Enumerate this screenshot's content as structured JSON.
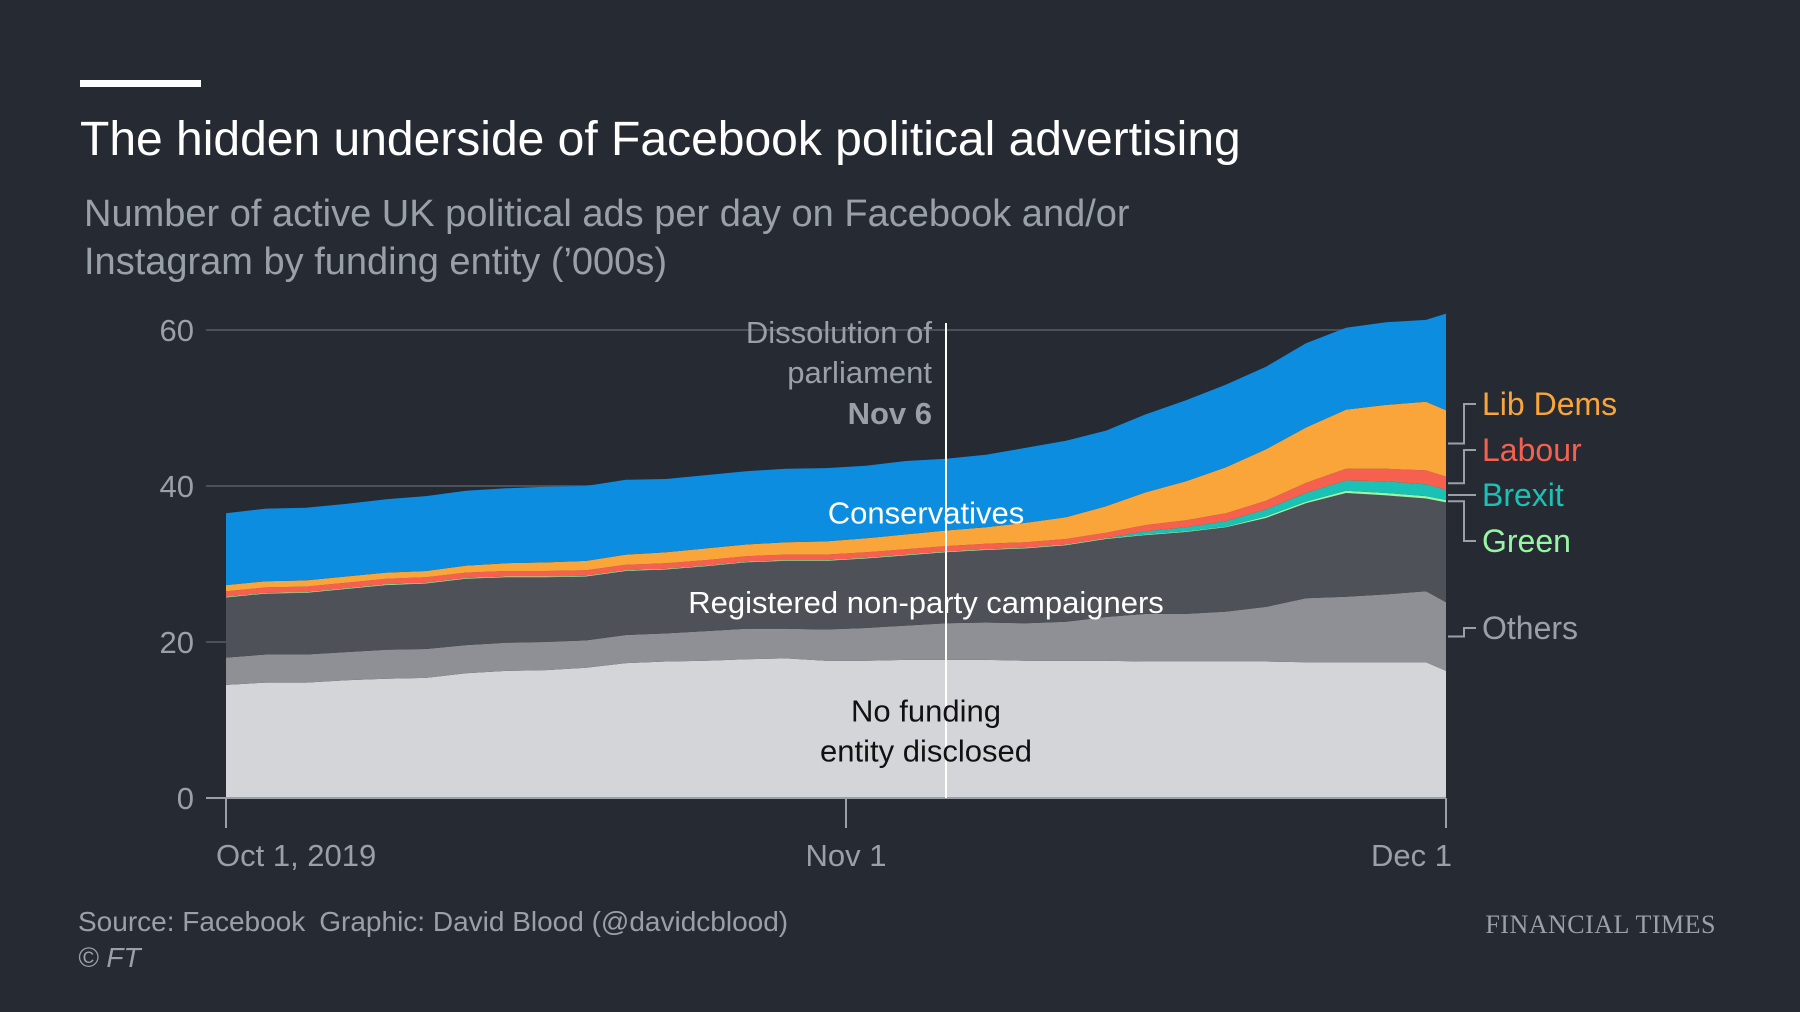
{
  "header": {
    "title": "The hidden underside of Facebook political advertising",
    "subtitle": "Number of active UK political ads per day on Facebook and/or Instagram by funding entity (’000s)"
  },
  "footer": {
    "source": "Source: Facebook",
    "graphic": "Graphic: David Blood (@davidcblood)",
    "copyright": "© FT",
    "brand": "FINANCIAL TIMES"
  },
  "colors": {
    "background": "#262a33",
    "gridline": "#4b5058",
    "axis_text": "#9aa0a8"
  },
  "chart_data": {
    "type": "area",
    "stacked": true,
    "x_type": "date",
    "ylim": [
      0,
      60
    ],
    "y_ticks": [
      0,
      20,
      40,
      60
    ],
    "x_ticks": [
      {
        "x": "2019-10-01",
        "label": "Oct 1, 2019"
      },
      {
        "x": "2019-11-01",
        "label": "Nov 1"
      },
      {
        "x": "2019-12-01",
        "label": "Dec 1"
      }
    ],
    "grid": true,
    "annotation": {
      "x": "2019-11-06",
      "lines": [
        "Dissolution of",
        "parliament"
      ],
      "bold": "Nov 6"
    },
    "x": [
      "2019-10-01",
      "2019-10-03",
      "2019-10-05",
      "2019-10-07",
      "2019-10-09",
      "2019-10-11",
      "2019-10-13",
      "2019-10-15",
      "2019-10-17",
      "2019-10-19",
      "2019-10-21",
      "2019-10-23",
      "2019-10-25",
      "2019-10-27",
      "2019-10-29",
      "2019-10-31",
      "2019-11-02",
      "2019-11-04",
      "2019-11-06",
      "2019-11-08",
      "2019-11-10",
      "2019-11-12",
      "2019-11-14",
      "2019-11-16",
      "2019-11-18",
      "2019-11-20",
      "2019-11-22",
      "2019-11-24",
      "2019-11-26",
      "2019-11-28",
      "2019-11-30",
      "2019-12-01"
    ],
    "series": [
      {
        "name": "No funding entity disclosed",
        "label_lines": [
          "No funding",
          "entity disclosed"
        ],
        "label_color": "#111111",
        "label_x": "2019-11-01",
        "label_y": 8.5,
        "color": "#d4d5d8",
        "values": [
          14.5,
          14.8,
          14.8,
          15.1,
          15.3,
          15.4,
          16.0,
          16.3,
          16.4,
          16.7,
          17.3,
          17.5,
          17.6,
          17.8,
          17.9,
          17.6,
          17.6,
          17.7,
          17.7,
          17.7,
          17.6,
          17.6,
          17.6,
          17.5,
          17.5,
          17.5,
          17.5,
          17.4,
          17.4,
          17.4,
          17.4,
          16.3
        ]
      },
      {
        "name": "Others",
        "legend": true,
        "color": "#8e9096",
        "values": [
          3.5,
          3.6,
          3.6,
          3.6,
          3.7,
          3.7,
          3.6,
          3.6,
          3.6,
          3.5,
          3.6,
          3.6,
          3.8,
          3.9,
          3.8,
          4.0,
          4.2,
          4.4,
          4.7,
          4.8,
          4.8,
          5.0,
          5.6,
          6.1,
          6.1,
          6.4,
          7.0,
          8.2,
          8.4,
          8.7,
          9.1,
          8.8
        ]
      },
      {
        "name": "Registered non-party campaigners",
        "label_lines": [
          "Registered non-party campaigners"
        ],
        "label_color": "#ffffff",
        "label_x": "2019-11-01",
        "label_y": 25,
        "color": "#4e5158",
        "values": [
          7.7,
          7.8,
          7.9,
          8.1,
          8.3,
          8.4,
          8.5,
          8.4,
          8.3,
          8.2,
          8.2,
          8.2,
          8.3,
          8.5,
          8.7,
          8.8,
          8.9,
          9.0,
          9.1,
          9.3,
          9.6,
          9.8,
          10.0,
          10.1,
          10.5,
          10.8,
          11.4,
          12.2,
          13.3,
          12.7,
          11.9,
          12.8
        ]
      },
      {
        "name": "Green",
        "legend": true,
        "color": "#98f5a3",
        "values": [
          0.1,
          0.1,
          0.1,
          0.1,
          0.1,
          0.1,
          0.1,
          0.1,
          0.1,
          0.1,
          0.1,
          0.1,
          0.1,
          0.1,
          0.1,
          0.1,
          0.1,
          0.1,
          0.1,
          0.1,
          0.1,
          0.1,
          0.1,
          0.1,
          0.1,
          0.1,
          0.2,
          0.2,
          0.3,
          0.3,
          0.3,
          0.3
        ]
      },
      {
        "name": "Brexit",
        "legend": true,
        "color": "#1ac1b5",
        "values": [
          0,
          0,
          0,
          0,
          0,
          0,
          0,
          0,
          0,
          0,
          0,
          0,
          0,
          0,
          0,
          0,
          0,
          0,
          0,
          0,
          0,
          0,
          0,
          0.4,
          0.5,
          0.7,
          0.9,
          1.1,
          1.3,
          1.5,
          1.5,
          1.3
        ]
      },
      {
        "name": "Labour",
        "legend": true,
        "color": "#f5614e",
        "values": [
          0.7,
          0.7,
          0.7,
          0.7,
          0.7,
          0.7,
          0.7,
          0.7,
          0.7,
          0.7,
          0.7,
          0.7,
          0.7,
          0.7,
          0.7,
          0.7,
          0.7,
          0.7,
          0.7,
          0.7,
          0.7,
          0.7,
          0.7,
          0.8,
          0.9,
          1.0,
          1.1,
          1.3,
          1.5,
          1.6,
          1.8,
          1.7
        ]
      },
      {
        "name": "Lib Dems",
        "legend": true,
        "color": "#f9a53a",
        "values": [
          0.8,
          0.8,
          0.8,
          0.8,
          0.8,
          0.8,
          0.9,
          1.0,
          1.1,
          1.2,
          1.3,
          1.4,
          1.5,
          1.5,
          1.6,
          1.7,
          1.8,
          1.9,
          2.0,
          2.1,
          2.5,
          2.8,
          3.4,
          4.2,
          5.0,
          5.9,
          6.6,
          7.1,
          7.6,
          8.2,
          8.8,
          8.5
        ]
      },
      {
        "name": "Conservatives",
        "label_lines": [
          "Conservatives"
        ],
        "label_color": "#ffffff",
        "label_x": "2019-11-01",
        "label_y": 36.5,
        "color": "#0d8de0",
        "values": [
          9.2,
          9.3,
          9.3,
          9.3,
          9.4,
          9.6,
          9.6,
          9.6,
          9.7,
          9.6,
          9.6,
          9.4,
          9.4,
          9.4,
          9.4,
          9.4,
          9.3,
          9.4,
          9.2,
          9.3,
          9.6,
          9.8,
          9.7,
          10.0,
          10.4,
          10.6,
          10.6,
          10.8,
          10.5,
          10.6,
          10.5,
          12.4
        ]
      }
    ]
  }
}
